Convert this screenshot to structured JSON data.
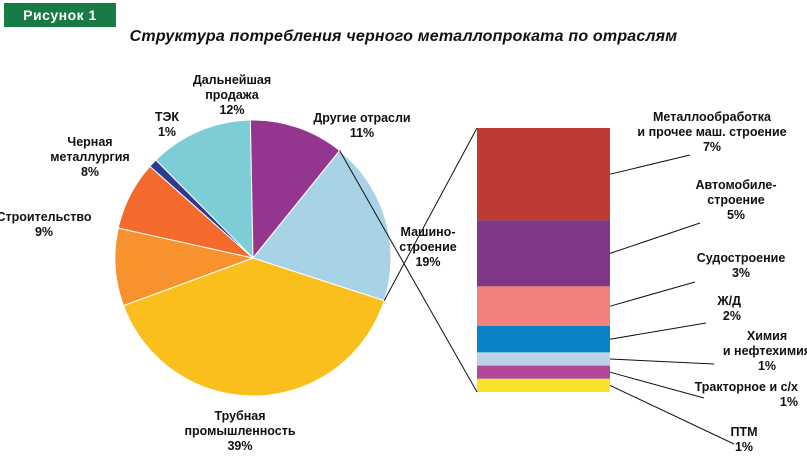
{
  "badge": "Рисунок 1",
  "chart_data": [
    {
      "type": "pie",
      "title": "Структура потребления черного металлопроката по отраслям",
      "categories": [
        "Трубная промышленность",
        "Строительство",
        "Черная металлургия",
        "ТЭК",
        "Дальнейшая продажа",
        "Другие отрасли",
        "Машиностроение"
      ],
      "label_lines": [
        [
          "Трубная",
          "промышленность",
          "39%"
        ],
        [
          "Строительство",
          "9%"
        ],
        [
          "Черная",
          "металлургия",
          "8%"
        ],
        [
          "ТЭК",
          "1%"
        ],
        [
          "Дальнейшая",
          "продажа",
          "12%"
        ],
        [
          "Другие отрасли",
          "11%"
        ],
        [
          "Машино-",
          "строение",
          "19%"
        ]
      ],
      "values": [
        39,
        9,
        8,
        1,
        12,
        11,
        19
      ],
      "unit": "%",
      "colors": [
        "#fbbf1d",
        "#f7922e",
        "#f36a2c",
        "#2e3a8f",
        "#7dcdd6",
        "#94368f",
        "#a8d3e7"
      ],
      "exploded_category": "Машиностроение"
    },
    {
      "type": "bar",
      "stacked": true,
      "parent": "Машиностроение",
      "categories": [
        "Металлообработка и прочее маш. строение",
        "Автомобилестроение",
        "Судостроение",
        "Ж/Д",
        "Химия и нефтехимия",
        "Тракторное и с/х",
        "ПТМ"
      ],
      "label_lines": [
        [
          "Металлообработка",
          "и прочее маш. строение",
          "7%"
        ],
        [
          "Автомобиле-",
          "строение",
          "5%"
        ],
        [
          "Судостроение",
          "3%"
        ],
        [
          "Ж/Д",
          "2%"
        ],
        [
          "Химия",
          "и нефтехимия",
          "1%"
        ],
        [
          "Тракторное и с/х",
          "1%"
        ],
        [
          "ПТМ",
          "1%"
        ]
      ],
      "values": [
        7,
        5,
        3,
        2,
        1,
        1,
        1
      ],
      "unit": "%",
      "colors": [
        "#be3b34",
        "#7e3887",
        "#f4807b",
        "#0a82c8",
        "#bcd2e6",
        "#b2479a",
        "#f6e32a"
      ]
    }
  ]
}
